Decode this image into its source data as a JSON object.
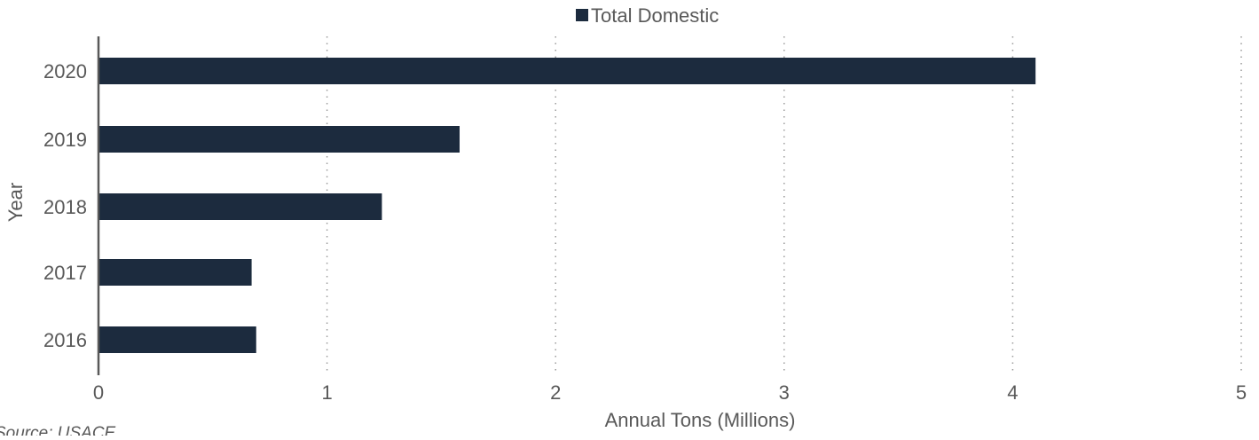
{
  "chart_data": {
    "type": "bar",
    "orientation": "horizontal",
    "categories": [
      "2020",
      "2019",
      "2018",
      "2017",
      "2016"
    ],
    "series": [
      {
        "name": "Total Domestic",
        "values": [
          4.1,
          1.58,
          1.24,
          0.67,
          0.69
        ],
        "color": "#1c2b3e"
      }
    ],
    "xlabel": "Annual Tons (Millions)",
    "ylabel": "Year",
    "xlim": [
      0,
      5
    ],
    "x_ticks": [
      "0",
      "1",
      "2",
      "3",
      "4",
      "5"
    ],
    "grid": "vertical dotted",
    "legend_position": "top-center"
  },
  "legend": {
    "label": "Total Domestic"
  },
  "source": "Source: USACE"
}
